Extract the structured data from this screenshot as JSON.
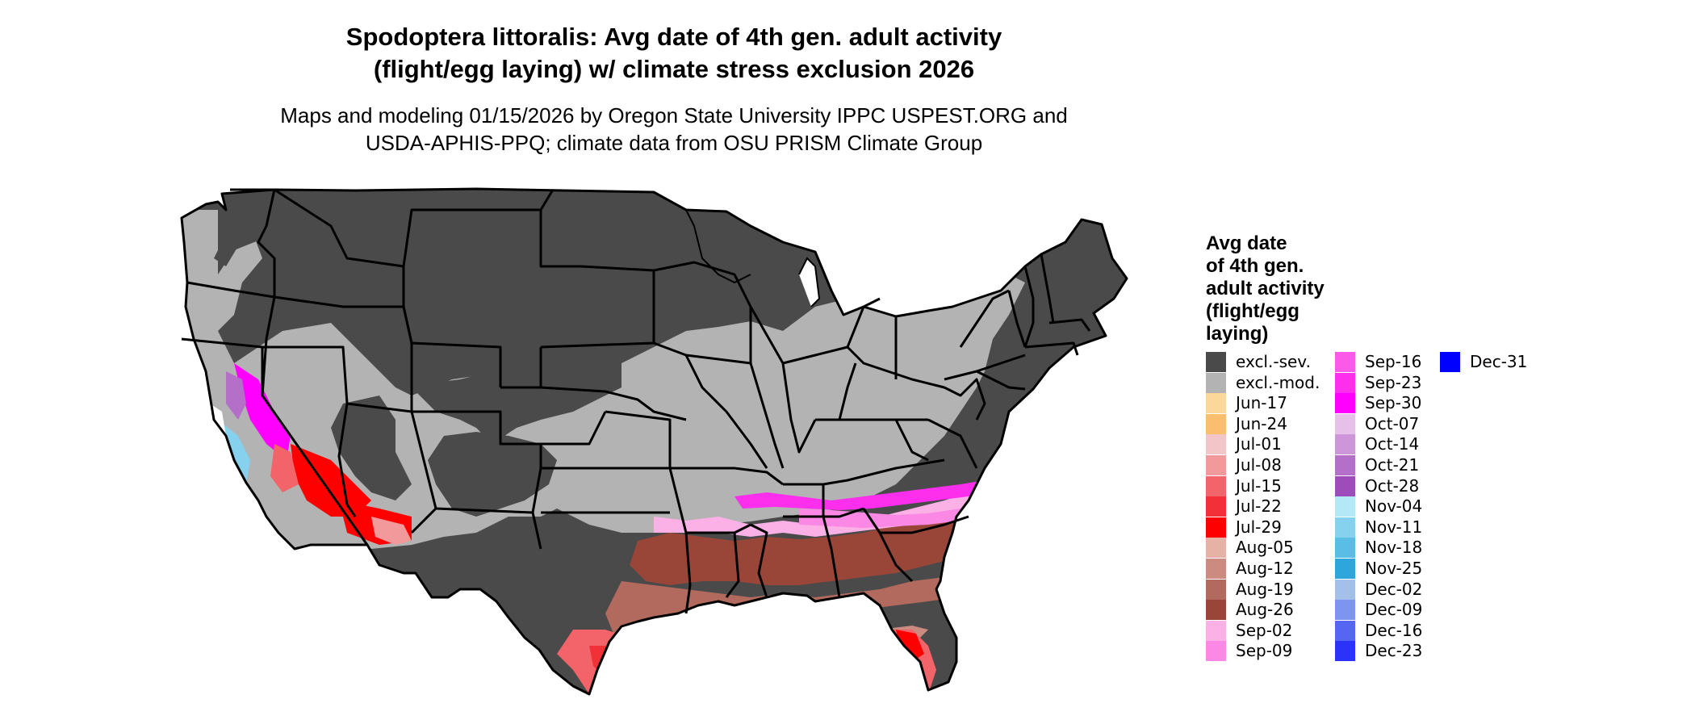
{
  "title": {
    "line1": "Spodoptera littoralis: Avg date of 4th gen. adult activity",
    "line2": "(flight/egg laying) w/ climate stress exclusion 2026"
  },
  "subtitle": {
    "line1": "Maps and modeling 01/15/2026 by Oregon State University IPPC USPEST.ORG and",
    "line2": "USDA-APHIS-PPQ; climate data from OSU PRISM Climate Group"
  },
  "colors": {
    "excl_sev": "#4a4a4a",
    "excl_mod": "#b3b3b3",
    "border": "#000000"
  },
  "legend": {
    "title": [
      "Avg date",
      "of 4th gen.",
      "adult activity",
      "(flight/egg",
      "laying)"
    ],
    "columns": [
      [
        {
          "label": "excl.-sev.",
          "color": "#4a4a4a"
        },
        {
          "label": "excl.-mod.",
          "color": "#b3b3b3"
        },
        {
          "label": "Jun-17",
          "color": "#fcd79a"
        },
        {
          "label": "Jun-24",
          "color": "#f9bf6e"
        },
        {
          "label": "Jul-01",
          "color": "#f2c6c8"
        },
        {
          "label": "Jul-08",
          "color": "#f2999c"
        },
        {
          "label": "Jul-15",
          "color": "#f26469"
        },
        {
          "label": "Jul-22",
          "color": "#f23037"
        },
        {
          "label": "Jul-29",
          "color": "#ff0000"
        },
        {
          "label": "Aug-05",
          "color": "#e6b2a6"
        },
        {
          "label": "Aug-12",
          "color": "#cc8b80"
        },
        {
          "label": "Aug-19",
          "color": "#b36a5e"
        },
        {
          "label": "Aug-26",
          "color": "#994538"
        },
        {
          "label": "Sep-02",
          "color": "#fbb1e6"
        },
        {
          "label": "Sep-09",
          "color": "#fb88e4"
        }
      ],
      [
        {
          "label": "Sep-16",
          "color": "#fb59e8"
        },
        {
          "label": "Sep-23",
          "color": "#fd2eec"
        },
        {
          "label": "Sep-30",
          "color": "#ff00ff"
        },
        {
          "label": "Oct-07",
          "color": "#e6c0e8"
        },
        {
          "label": "Oct-14",
          "color": "#cc96d8"
        },
        {
          "label": "Oct-21",
          "color": "#b46fc9"
        },
        {
          "label": "Oct-28",
          "color": "#9f4cbb"
        },
        {
          "label": "Nov-04",
          "color": "#b3e9f7"
        },
        {
          "label": "Nov-11",
          "color": "#86d2ee"
        },
        {
          "label": "Nov-18",
          "color": "#59bde4"
        },
        {
          "label": "Nov-25",
          "color": "#2da6dc"
        },
        {
          "label": "Dec-02",
          "color": "#a3c0ea"
        },
        {
          "label": "Dec-09",
          "color": "#7d95ee"
        },
        {
          "label": "Dec-16",
          "color": "#5566f2"
        },
        {
          "label": "Dec-23",
          "color": "#2c33f8"
        }
      ],
      [
        {
          "label": "Dec-31",
          "color": "#0000ff"
        }
      ]
    ]
  }
}
